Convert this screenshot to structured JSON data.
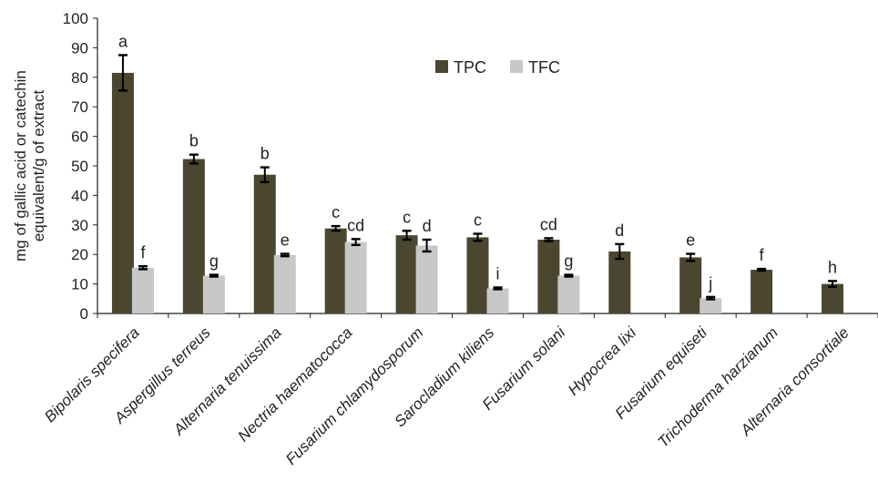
{
  "chart_data": {
    "type": "bar",
    "ylabel_lines": [
      "mg of gallic acid or catechin",
      "equivalent/g of extract"
    ],
    "ylim": [
      0,
      100
    ],
    "yticks": [
      0,
      10,
      20,
      30,
      40,
      50,
      60,
      70,
      80,
      90,
      100
    ],
    "categories": [
      "Bipolaris specifera",
      "Aspergillus terreus",
      "Alternaria tenuissima",
      "Nectria haematococca",
      "Fusarium chlamydosporum",
      "Sarocladium kiliens",
      "Fusarium solani",
      "Hypocrea lixi",
      "Fusarium equiseti",
      "Trichoderma harzianum",
      "Alternaria consortiale"
    ],
    "legend_position": "top-center",
    "series": [
      {
        "name": "TPC",
        "color": "#4a4630",
        "values": [
          81.5,
          52.3,
          47.0,
          28.8,
          26.5,
          25.8,
          25.0,
          21.0,
          19.0,
          14.8,
          10.0
        ],
        "errors": [
          6.0,
          1.5,
          2.5,
          0.8,
          1.5,
          1.2,
          0.5,
          2.5,
          1.2,
          0.3,
          1.0
        ],
        "letters": [
          "a",
          "b",
          "b",
          "c",
          "c",
          "c",
          "cd",
          "d",
          "e",
          "f",
          "h"
        ]
      },
      {
        "name": "TFC",
        "color": "#c8c8c8",
        "values": [
          15.5,
          12.8,
          19.8,
          24.2,
          23.0,
          8.5,
          12.8,
          null,
          5.2,
          null,
          null
        ],
        "errors": [
          0.5,
          0.3,
          0.4,
          1.0,
          2.0,
          0.3,
          0.3,
          null,
          0.4,
          null,
          null
        ],
        "letters": [
          "f",
          "g",
          "e",
          "cd",
          "d",
          "i",
          "g",
          null,
          "j",
          null,
          null
        ]
      }
    ]
  }
}
